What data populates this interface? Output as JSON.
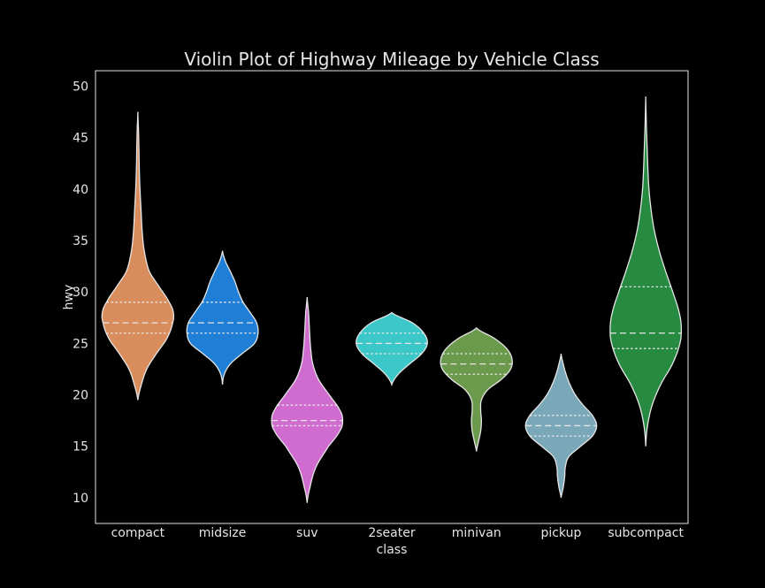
{
  "chart_data": {
    "type": "violin",
    "title": "Violin Plot of Highway Mileage by Vehicle Class",
    "xlabel": "class",
    "ylabel": "hwy",
    "ylim": [
      7.5,
      51.5
    ],
    "yticks": [
      10,
      15,
      20,
      25,
      30,
      35,
      40,
      45,
      50
    ],
    "grid": false,
    "inner": "quartile",
    "categories": [
      "compact",
      "midsize",
      "suv",
      "2seater",
      "minivan",
      "pickup",
      "subcompact"
    ],
    "colors": [
      "#d98c5c",
      "#1f7fd6",
      "#d06cd0",
      "#3cc8c8",
      "#6c9a4c",
      "#7aa8b8",
      "#268a40"
    ],
    "series": [
      {
        "category": "compact",
        "min": 19.5,
        "max": 47.5,
        "q1": 26,
        "median": 27,
        "q3": 29,
        "profile": [
          [
            19.5,
            0.0
          ],
          [
            21,
            0.1
          ],
          [
            22.5,
            0.25
          ],
          [
            24,
            0.52
          ],
          [
            25.5,
            0.82
          ],
          [
            27,
            0.98
          ],
          [
            28,
            1.0
          ],
          [
            29,
            0.88
          ],
          [
            30.5,
            0.6
          ],
          [
            32,
            0.32
          ],
          [
            34,
            0.18
          ],
          [
            36,
            0.12
          ],
          [
            38,
            0.09
          ],
          [
            40,
            0.06
          ],
          [
            42,
            0.04
          ],
          [
            44,
            0.03
          ],
          [
            45.5,
            0.02
          ],
          [
            47.5,
            0.0
          ]
        ]
      },
      {
        "category": "midsize",
        "min": 21,
        "max": 34,
        "q1": 26,
        "median": 27,
        "q3": 29,
        "profile": [
          [
            21,
            0.0
          ],
          [
            22,
            0.05
          ],
          [
            23,
            0.22
          ],
          [
            24,
            0.55
          ],
          [
            25,
            0.9
          ],
          [
            26,
            1.0
          ],
          [
            27,
            0.96
          ],
          [
            28,
            0.78
          ],
          [
            29,
            0.58
          ],
          [
            30,
            0.45
          ],
          [
            31,
            0.35
          ],
          [
            32,
            0.22
          ],
          [
            33,
            0.08
          ],
          [
            34,
            0.0
          ]
        ]
      },
      {
        "category": "suv",
        "min": 9.5,
        "max": 29.5,
        "q1": 17,
        "median": 17.5,
        "q3": 19,
        "profile": [
          [
            9.5,
            0.0
          ],
          [
            11,
            0.08
          ],
          [
            13,
            0.25
          ],
          [
            15,
            0.6
          ],
          [
            16.5,
            0.92
          ],
          [
            17.5,
            1.0
          ],
          [
            18.5,
            0.92
          ],
          [
            20,
            0.62
          ],
          [
            21.5,
            0.32
          ],
          [
            23,
            0.16
          ],
          [
            24.5,
            0.1
          ],
          [
            26,
            0.07
          ],
          [
            28,
            0.04
          ],
          [
            29.5,
            0.0
          ]
        ]
      },
      {
        "category": "2seater",
        "min": 21,
        "max": 28,
        "q1": 24,
        "median": 25,
        "q3": 26,
        "profile": [
          [
            21,
            0.0
          ],
          [
            22,
            0.18
          ],
          [
            23,
            0.5
          ],
          [
            24,
            0.84
          ],
          [
            25,
            1.0
          ],
          [
            26,
            0.9
          ],
          [
            27,
            0.58
          ],
          [
            28,
            0.0
          ]
        ]
      },
      {
        "category": "minivan",
        "min": 14.5,
        "max": 26.5,
        "q1": 22,
        "median": 23,
        "q3": 24,
        "profile": [
          [
            14.5,
            0.0
          ],
          [
            15.5,
            0.06
          ],
          [
            16.5,
            0.12
          ],
          [
            17.5,
            0.14
          ],
          [
            18.5,
            0.12
          ],
          [
            19.5,
            0.14
          ],
          [
            20.5,
            0.32
          ],
          [
            21.5,
            0.7
          ],
          [
            22.5,
            0.96
          ],
          [
            23.5,
            1.0
          ],
          [
            24.5,
            0.85
          ],
          [
            25.5,
            0.5
          ],
          [
            26.5,
            0.0
          ]
        ]
      },
      {
        "category": "pickup",
        "min": 10,
        "max": 24,
        "q1": 16,
        "median": 17,
        "q3": 18,
        "profile": [
          [
            10,
            0.0
          ],
          [
            11,
            0.06
          ],
          [
            12,
            0.1
          ],
          [
            13,
            0.12
          ],
          [
            14,
            0.22
          ],
          [
            15,
            0.55
          ],
          [
            16,
            0.88
          ],
          [
            17,
            1.0
          ],
          [
            18,
            0.88
          ],
          [
            19,
            0.62
          ],
          [
            20,
            0.4
          ],
          [
            21,
            0.25
          ],
          [
            22,
            0.14
          ],
          [
            23,
            0.06
          ],
          [
            24,
            0.0
          ]
        ]
      },
      {
        "category": "subcompact",
        "min": 15,
        "max": 49,
        "q1": 24.5,
        "median": 26,
        "q3": 30.5,
        "profile": [
          [
            15,
            0.0
          ],
          [
            17,
            0.05
          ],
          [
            19,
            0.18
          ],
          [
            21,
            0.42
          ],
          [
            23,
            0.75
          ],
          [
            25,
            0.96
          ],
          [
            26.5,
            1.0
          ],
          [
            28,
            0.94
          ],
          [
            30,
            0.76
          ],
          [
            32,
            0.56
          ],
          [
            34,
            0.38
          ],
          [
            36,
            0.24
          ],
          [
            38,
            0.15
          ],
          [
            40,
            0.09
          ],
          [
            42,
            0.06
          ],
          [
            44,
            0.04
          ],
          [
            46,
            0.02
          ],
          [
            49,
            0.0
          ]
        ]
      }
    ]
  }
}
